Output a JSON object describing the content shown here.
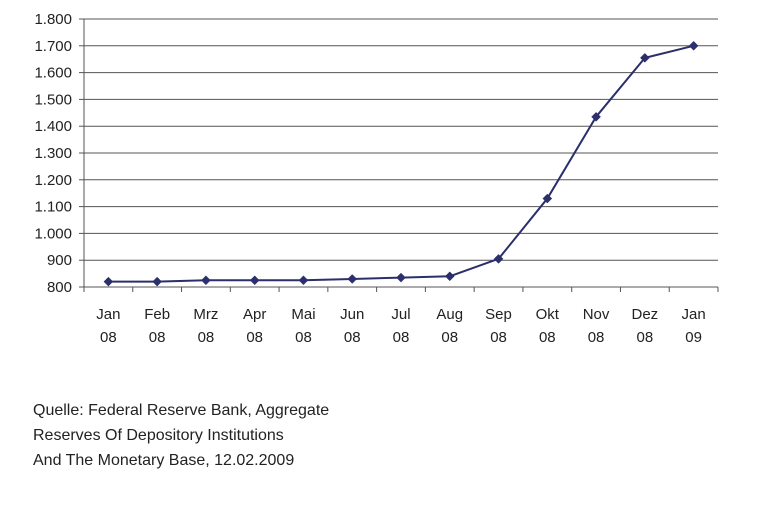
{
  "chart_data": {
    "type": "line",
    "title": "",
    "xlabel": "",
    "ylabel": "",
    "categories": [
      [
        "Jan",
        "08"
      ],
      [
        "Feb",
        "08"
      ],
      [
        "Mrz",
        "08"
      ],
      [
        "Apr",
        "08"
      ],
      [
        "Mai",
        "08"
      ],
      [
        "Jun",
        "08"
      ],
      [
        "Jul",
        "08"
      ],
      [
        "Aug",
        "08"
      ],
      [
        "Sep",
        "08"
      ],
      [
        "Okt",
        "08"
      ],
      [
        "Nov",
        "08"
      ],
      [
        "Dez",
        "08"
      ],
      [
        "Jan",
        "09"
      ]
    ],
    "series": [
      {
        "values": [
          820,
          820,
          825,
          825,
          825,
          830,
          835,
          840,
          905,
          1130,
          1435,
          1655,
          1700
        ],
        "color": "#2b2f6b",
        "marker": "diamond"
      }
    ],
    "ylim": [
      800,
      1800
    ],
    "yticks": [
      800,
      900,
      1000,
      1100,
      1200,
      1300,
      1400,
      1500,
      1600,
      1700,
      1800
    ],
    "ytick_labels": [
      "800",
      "900",
      "1.000",
      "1.100",
      "1.200",
      "1.300",
      "1.400",
      "1.500",
      "1.600",
      "1.700",
      "1.800"
    ],
    "grid": true,
    "legend": "none"
  },
  "source": {
    "lines": [
      "Quelle: Federal Reserve Bank, Aggregate",
      "Reserves Of Depository Institutions",
      "And The Monetary Base, 12.02.2009"
    ]
  }
}
